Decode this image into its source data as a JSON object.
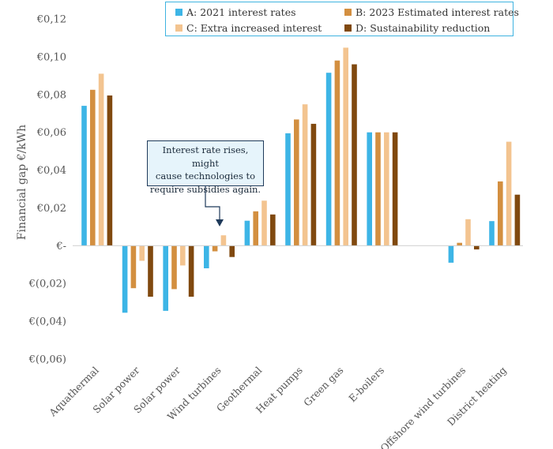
{
  "chart_data": {
    "type": "bar",
    "title": "",
    "xlabel": "",
    "ylabel": "Financial gap €/kWh",
    "ylim": [
      -0.06,
      0.12
    ],
    "y_ticks": [
      {
        "value": 0.12,
        "label": "€0,12"
      },
      {
        "value": 0.1,
        "label": "€0,10"
      },
      {
        "value": 0.08,
        "label": "€0,08"
      },
      {
        "value": 0.06,
        "label": "€0,06"
      },
      {
        "value": 0.04,
        "label": "€0,04"
      },
      {
        "value": 0.02,
        "label": "€0,02"
      },
      {
        "value": 0.0,
        "label": "€-"
      },
      {
        "value": -0.02,
        "label": "€(0,02)"
      },
      {
        "value": -0.04,
        "label": "€(0,04)"
      },
      {
        "value": -0.06,
        "label": "€(0,06)"
      }
    ],
    "categories": [
      "Aquathermal",
      "Solar power",
      "Solar power",
      "Wind turbines",
      "Geothermal",
      "Heat pumps",
      "Green gas",
      "E-boilers",
      "",
      "Offshore wind turbines",
      "District heating"
    ],
    "series": [
      {
        "name": "A: 2021 interest rates",
        "color": "#3db5e6",
        "values": [
          0.074,
          -0.0355,
          -0.0345,
          -0.012,
          0.0132,
          0.0595,
          0.0915,
          0.06,
          null,
          -0.009,
          0.013
        ]
      },
      {
        "name": "B: 2023 Estimated interest rates",
        "color": "#d38f40",
        "values": [
          0.0825,
          -0.0225,
          -0.023,
          -0.003,
          0.0182,
          0.0668,
          0.098,
          0.06,
          null,
          0.0015,
          0.034
        ]
      },
      {
        "name": "C: Extra increased interest",
        "color": "#f3c490",
        "values": [
          0.091,
          -0.008,
          -0.0105,
          0.0055,
          0.0238,
          0.0748,
          0.1048,
          0.06,
          null,
          0.014,
          0.055
        ]
      },
      {
        "name": "D: Sustainability reduction",
        "color": "#80490f",
        "values": [
          0.0795,
          -0.027,
          -0.027,
          -0.006,
          0.0165,
          0.0645,
          0.096,
          0.06,
          null,
          -0.002,
          0.027
        ]
      }
    ],
    "legend_position": "top",
    "grid": false,
    "annotation": {
      "lines": [
        "Interest rate rises, might",
        "cause technologies to",
        "require subsidies again."
      ],
      "target_category": "Wind turbines"
    }
  }
}
